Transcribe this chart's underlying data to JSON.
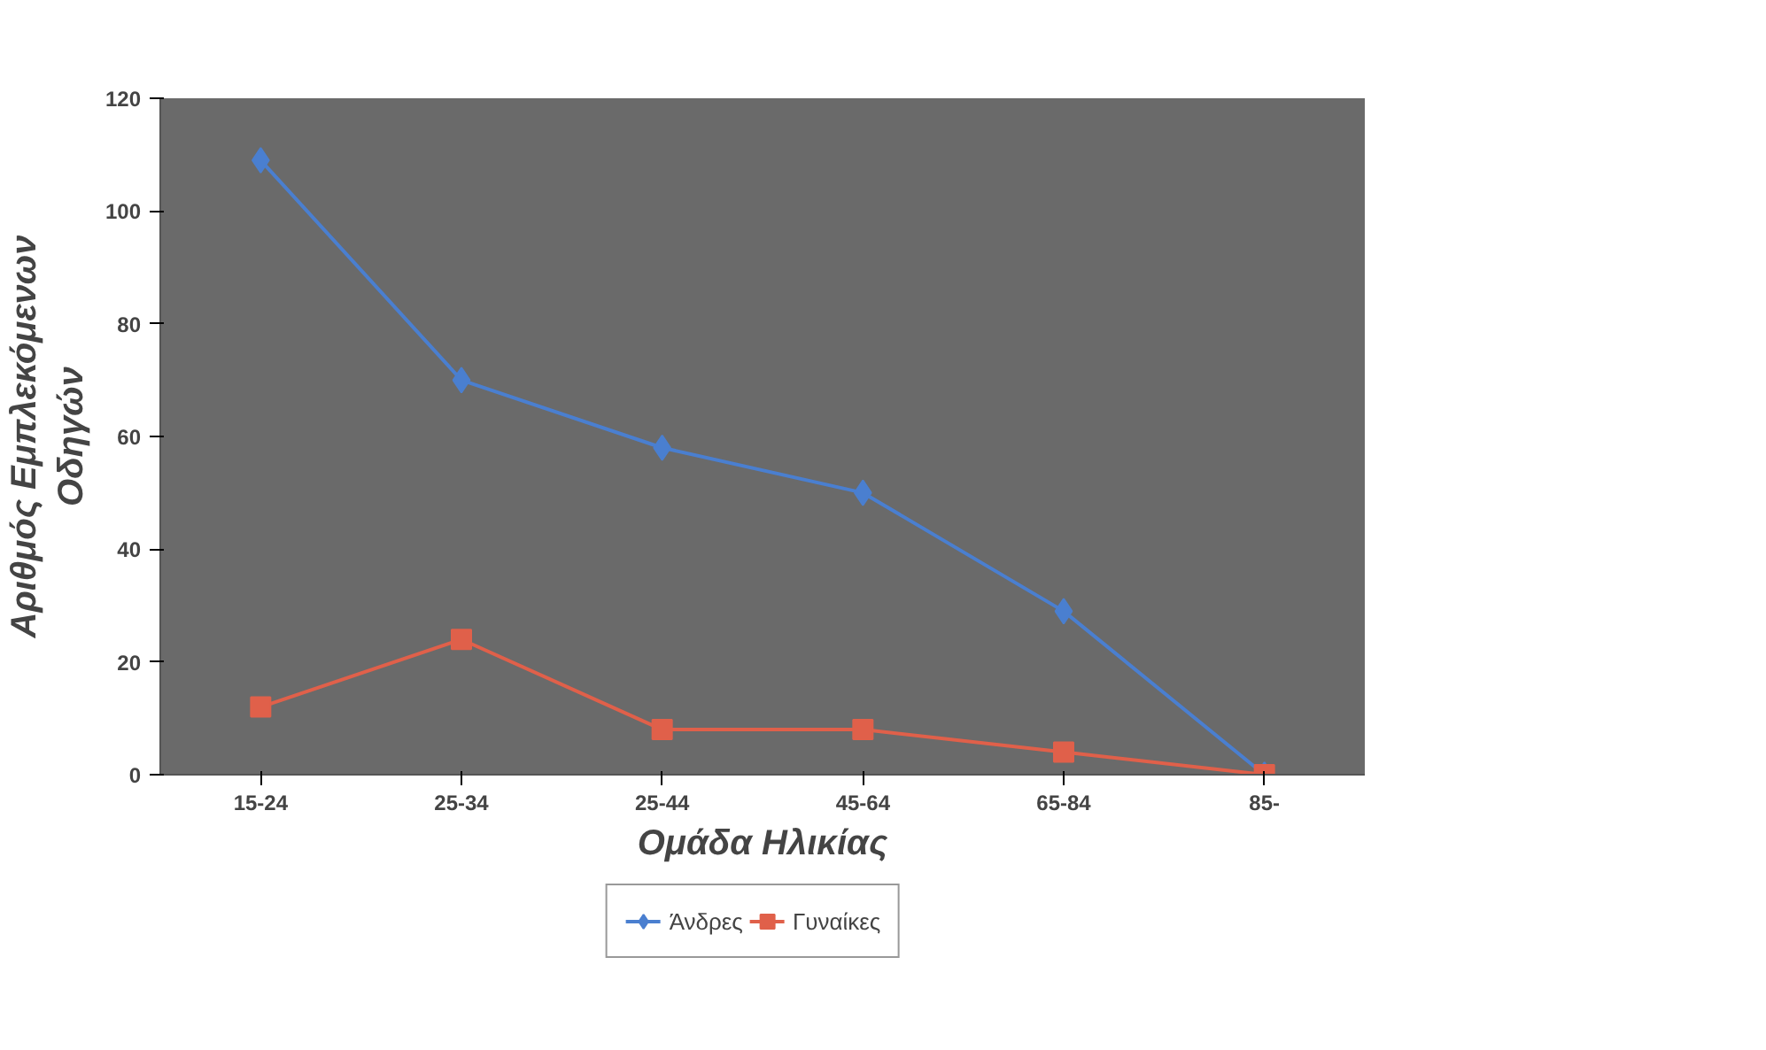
{
  "chart_data": {
    "type": "line",
    "xlabel": "Ομάδα Ηλικίας",
    "ylabel": "Αριθμός Εμπλεκόμενων\nΟδηγών",
    "categories": [
      "15-24",
      "25-34",
      "25-44",
      "45-64",
      "65-84",
      "85-"
    ],
    "series": [
      {
        "name": "Άνδρες",
        "color": "#4a7fd0",
        "marker": "diamond",
        "values": [
          109,
          70,
          58,
          50,
          29,
          0
        ]
      },
      {
        "name": "Γυναίκες",
        "color": "#e0604a",
        "marker": "square",
        "values": [
          12,
          24,
          8,
          8,
          4,
          0
        ]
      }
    ],
    "ylim": [
      0,
      120
    ],
    "yticks": [
      0,
      20,
      40,
      60,
      80,
      100,
      120
    ],
    "grid": false,
    "legend": "bottom"
  }
}
